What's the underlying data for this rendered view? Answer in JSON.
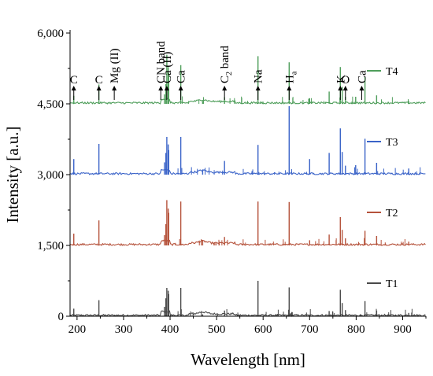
{
  "chart_data": {
    "type": "line",
    "xlabel": "Wavelength [nm]",
    "ylabel": "Intensity [a.u.]",
    "xlim": [
      185,
      950
    ],
    "ylim": [
      0,
      6000
    ],
    "xticks": [
      200,
      300,
      400,
      500,
      600,
      700,
      800,
      900
    ],
    "xtick_labels": [
      "200",
      "300",
      "400",
      "500",
      "600",
      "700",
      "800",
      "900"
    ],
    "yticks": [
      0,
      1500,
      3000,
      4500,
      6000
    ],
    "ytick_labels": [
      "0",
      "1,500",
      "3,000",
      "4,500",
      "6,000"
    ],
    "grid": false,
    "legend_position": "right, beside each trace",
    "series": [
      {
        "name": "T1",
        "color": "#4a4a4a",
        "offset": 0,
        "peaks": [
          [
            193,
            160
          ],
          [
            247,
            340
          ],
          [
            388,
            200
          ],
          [
            391,
            380
          ],
          [
            393,
            600
          ],
          [
            396,
            540
          ],
          [
            397,
            470
          ],
          [
            423,
            600
          ],
          [
            470,
            40
          ],
          [
            517,
            120
          ],
          [
            589,
            750
          ],
          [
            656,
            610
          ],
          [
            742,
            110
          ],
          [
            766,
            560
          ],
          [
            770,
            280
          ],
          [
            777,
            130
          ],
          [
            809,
            40
          ],
          [
            819,
            320
          ],
          [
            844,
            120
          ],
          [
            913,
            70
          ]
        ]
      },
      {
        "name": "T2",
        "color": "#b5523b",
        "offset": 1500,
        "peaks": [
          [
            193,
            250
          ],
          [
            247,
            530
          ],
          [
            388,
            220
          ],
          [
            391,
            450
          ],
          [
            393,
            960
          ],
          [
            396,
            780
          ],
          [
            397,
            690
          ],
          [
            423,
            930
          ],
          [
            470,
            110
          ],
          [
            517,
            180
          ],
          [
            589,
            930
          ],
          [
            656,
            920
          ],
          [
            700,
            110
          ],
          [
            742,
            230
          ],
          [
            766,
            600
          ],
          [
            770,
            330
          ],
          [
            777,
            150
          ],
          [
            819,
            310
          ],
          [
            844,
            200
          ],
          [
            913,
            80
          ]
        ]
      },
      {
        "name": "T3",
        "color": "#3a63c8",
        "offset": 3000,
        "peaks": [
          [
            193,
            330
          ],
          [
            247,
            650
          ],
          [
            388,
            260
          ],
          [
            391,
            460
          ],
          [
            393,
            800
          ],
          [
            396,
            640
          ],
          [
            397,
            520
          ],
          [
            423,
            800
          ],
          [
            470,
            110
          ],
          [
            517,
            290
          ],
          [
            589,
            630
          ],
          [
            656,
            1450
          ],
          [
            700,
            330
          ],
          [
            742,
            460
          ],
          [
            766,
            980
          ],
          [
            770,
            480
          ],
          [
            777,
            190
          ],
          [
            799,
            200
          ],
          [
            819,
            760
          ],
          [
            844,
            250
          ],
          [
            913,
            130
          ]
        ]
      },
      {
        "name": "T4",
        "color": "#4f9e5b",
        "offset": 4500,
        "peaks": [
          [
            193,
            170
          ],
          [
            247,
            410
          ],
          [
            388,
            200
          ],
          [
            391,
            420
          ],
          [
            393,
            1040
          ],
          [
            396,
            780
          ],
          [
            397,
            650
          ],
          [
            423,
            820
          ],
          [
            470,
            60
          ],
          [
            517,
            140
          ],
          [
            589,
            1010
          ],
          [
            656,
            880
          ],
          [
            700,
            120
          ],
          [
            742,
            260
          ],
          [
            766,
            780
          ],
          [
            770,
            360
          ],
          [
            777,
            150
          ],
          [
            799,
            150
          ],
          [
            819,
            570
          ],
          [
            844,
            180
          ],
          [
            913,
            60
          ]
        ]
      }
    ],
    "annotations": [
      {
        "text": "C",
        "sub": "",
        "x": 193,
        "y": 4500,
        "vertical": false
      },
      {
        "text": "C",
        "sub": "",
        "x": 247,
        "y": 4500,
        "vertical": false
      },
      {
        "text": "Mg (II)",
        "sub": "",
        "x": 280,
        "y": 4500,
        "vertical": true
      },
      {
        "text": "CN band",
        "sub": "",
        "x": 380,
        "y": 4500,
        "vertical": true
      },
      {
        "text": "Ca (II)",
        "sub": "",
        "x": 393,
        "y": 4500,
        "vertical": true
      },
      {
        "text": "Ca",
        "sub": "",
        "x": 423,
        "y": 4500,
        "vertical": true
      },
      {
        "text": "C",
        "sub": "2",
        "text2": " band",
        "x": 517,
        "y": 4500,
        "vertical": true
      },
      {
        "text": "Na",
        "sub": "",
        "x": 589,
        "y": 4500,
        "vertical": true
      },
      {
        "text": "H",
        "sub": "a",
        "x": 656,
        "y": 4500,
        "vertical": true
      },
      {
        "text": "K",
        "sub": "",
        "x": 766,
        "y": 4500,
        "vertical": true
      },
      {
        "text": "O",
        "sub": "",
        "x": 777,
        "y": 4500,
        "vertical": false
      },
      {
        "text": "Ca",
        "sub": "",
        "x": 812,
        "y": 4500,
        "vertical": true
      }
    ]
  }
}
